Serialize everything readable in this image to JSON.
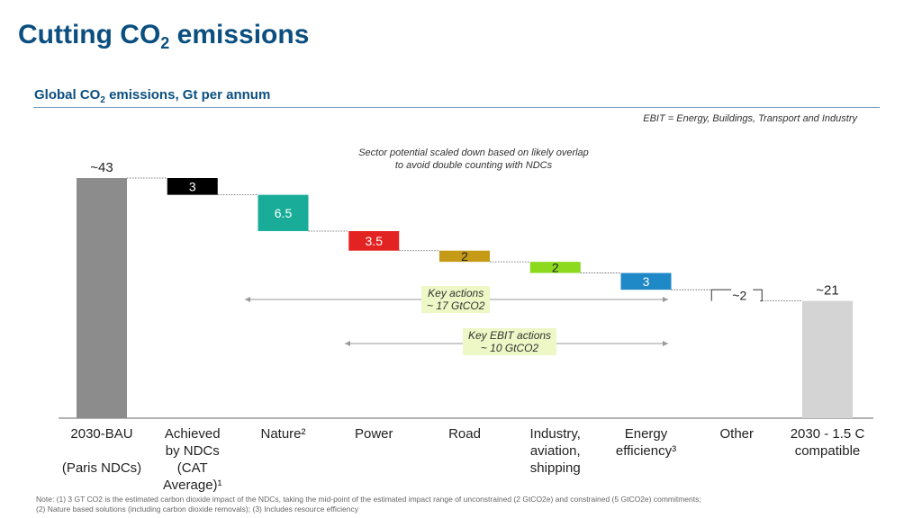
{
  "header": {
    "title": "Cutting CO",
    "title_sub": "2",
    "title_suffix": " emissions",
    "subtitle": "Global CO",
    "subtitle_sub": "2",
    "subtitle_suffix": " emissions, Gt per annum"
  },
  "notes": {
    "ebit": "EBIT = Energy, Buildings, Transport and Industry",
    "overlap_line1": "Sector potential scaled down based on likely overlap",
    "overlap_line2": "to avoid double counting with NDCs",
    "footnote_line1": "Note: (1) 3 GT CO2 is the estimated carbon dioxide impact of the NDCs, taking the mid-point of the estimated impact range of unconstrained (2 GtCO2e) and constrained (5 GtCO2e) commitments;",
    "footnote_line2": "(2) Nature based solutions (including carbon dioxide removals); (3) Includes resource efficiency"
  },
  "annotations": {
    "key_actions_line1": "Key actions",
    "key_actions_line2": "~ 17 GtCO2",
    "key_ebit_line1": "Key EBIT actions",
    "key_ebit_line2": "~ 10 GtCO2"
  },
  "chart_data": {
    "type": "bar",
    "subtype": "waterfall",
    "ylim": [
      0,
      43
    ],
    "categories": [
      [
        "2030-BAU",
        "",
        "(Paris NDCs)"
      ],
      [
        "Achieved",
        "by NDCs",
        "(CAT",
        "Average)¹"
      ],
      [
        "Nature²"
      ],
      [
        "Power"
      ],
      [
        "Road"
      ],
      [
        "Industry,",
        "aviation,",
        "shipping"
      ],
      [
        "Energy",
        "efficiency³"
      ],
      [
        "Other"
      ],
      [
        "2030 - 1.5 C",
        "compatible"
      ]
    ],
    "steps": [
      {
        "kind": "total",
        "value": 43,
        "label": "~43",
        "color": "#8c8c8c"
      },
      {
        "kind": "decrease",
        "value": 3,
        "label": "3",
        "color": "#000000"
      },
      {
        "kind": "decrease",
        "value": 6.5,
        "label": "6.5",
        "color": "#19ad99"
      },
      {
        "kind": "decrease",
        "value": 3.5,
        "label": "3.5",
        "color": "#e32322"
      },
      {
        "kind": "decrease",
        "value": 2,
        "label": "2",
        "color": "#c49a17"
      },
      {
        "kind": "decrease",
        "value": 2,
        "label": "2",
        "color": "#8cd91e"
      },
      {
        "kind": "decrease",
        "value": 3,
        "label": "3",
        "color": "#1f88c6"
      },
      {
        "kind": "decrease",
        "value": 2,
        "label": "~2",
        "color": "#ffffff"
      },
      {
        "kind": "total",
        "value": 21,
        "label": "~21",
        "color": "#d4d4d4"
      }
    ]
  }
}
